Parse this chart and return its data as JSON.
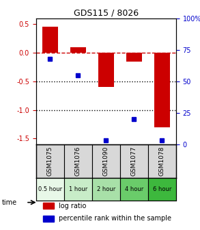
{
  "title": "GDS115 / 8026",
  "samples": [
    "GSM1075",
    "GSM1076",
    "GSM1090",
    "GSM1077",
    "GSM1078"
  ],
  "time_labels": [
    "0.5 hour",
    "1 hour",
    "2 hour",
    "4 hour",
    "6 hour"
  ],
  "time_colors": [
    "#e8f8e8",
    "#c8ecc8",
    "#a8e0a8",
    "#6acc6a",
    "#3db83d"
  ],
  "log_ratio": [
    0.45,
    0.1,
    -0.6,
    -0.15,
    -1.3
  ],
  "percentile": [
    68,
    55,
    3,
    20,
    3
  ],
  "bar_color": "#cc0000",
  "dot_color": "#0000cc",
  "ylim_left": [
    -1.6,
    0.6
  ],
  "ylim_right": [
    0,
    100
  ],
  "yticks_left": [
    0.5,
    0.0,
    -0.5,
    -1.0,
    -1.5
  ],
  "yticks_right": [
    100,
    75,
    50,
    25,
    0
  ],
  "hline_y": 0.0,
  "dotted_lines": [
    -0.5,
    -1.0
  ],
  "background_color": "#ffffff",
  "plot_bg": "#f0f0f0",
  "legend_log_ratio": "log ratio",
  "legend_percentile": "percentile rank within the sample"
}
